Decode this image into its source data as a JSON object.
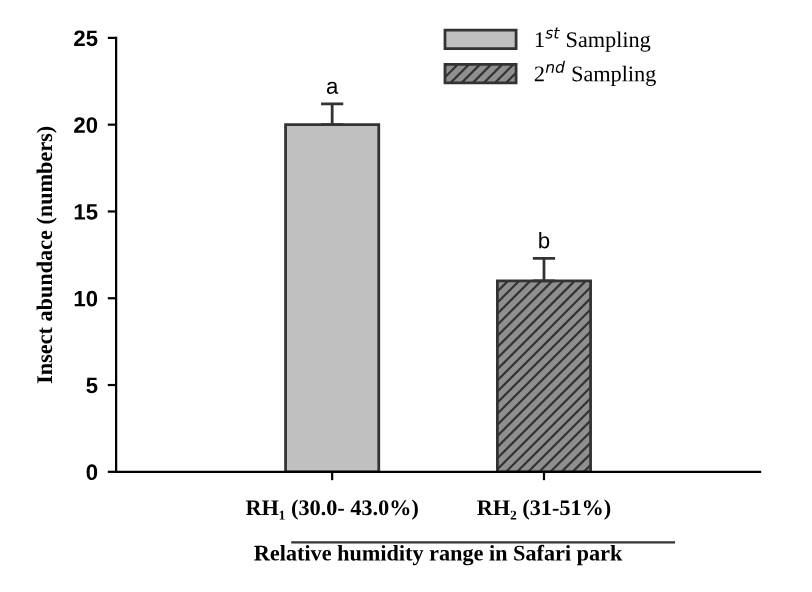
{
  "chart_data": {
    "type": "bar",
    "ylabel": "Insect abundace (numbers)",
    "xlabel": "Relative humidity range in Safari park",
    "categories": [
      "RH₁ (30.0- 43.0%)",
      "RH₂ (31-51%)"
    ],
    "series": [
      {
        "name": "1$^{st}$ Sampling",
        "color": "#c0c0c0",
        "values": [
          20,
          null
        ],
        "errors": [
          1.2,
          null
        ]
      },
      {
        "name": "2$^{nd}$ Sampling",
        "color": "#333333",
        "values": [
          null,
          11
        ],
        "errors": [
          null,
          1.3
        ]
      }
    ],
    "ylim": [
      0,
      25
    ],
    "yticks": [
      0,
      5,
      10,
      15,
      20,
      25
    ],
    "grid": false,
    "legend": "top right",
    "annotations": [
      {
        "text": "a",
        "x": "RH₁ (30.0- 43.0%)",
        "y": 21.2
      },
      {
        "text": "b",
        "x": "RH₂ (31-51%)",
        "y": 12.3
      }
    ]
  }
}
